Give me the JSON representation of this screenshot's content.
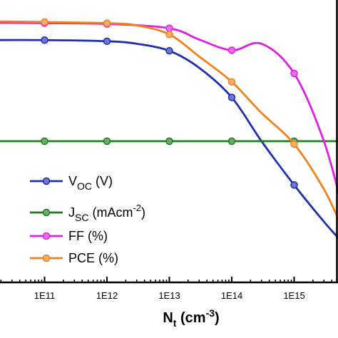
{
  "chart_data": {
    "type": "line",
    "xscale": "log",
    "x": [
      10000000000.0,
      100000000000.0,
      1000000000000.0,
      10000000000000.0,
      100000000000000.0,
      1000000000000000.0
    ],
    "xlim": [
      10000000000.0,
      6000000000000000.0
    ],
    "ylim": [
      0,
      1
    ],
    "xticks": [
      "1E11",
      "1E12",
      "1E13",
      "1E14",
      "1E15"
    ],
    "xlabel": {
      "main": "N",
      "sub": "t",
      "unit_open": " (cm",
      "sup": "-3",
      "unit_close": ")"
    },
    "grid": false,
    "legend_position": "lower-left",
    "series": [
      {
        "name": "VOC (V)",
        "color": "#1f2fb0",
        "markers": [
          [
            10000000000.0,
            0.858
          ],
          [
            100000000000.0,
            0.858
          ],
          [
            1000000000000.0,
            0.854
          ],
          [
            10000000000000.0,
            0.82
          ],
          [
            100000000000000.0,
            0.655
          ],
          [
            1000000000000000.0,
            0.345
          ]
        ],
        "curve": [
          [
            10000000000.0,
            0.858
          ],
          [
            100000000000.0,
            0.858
          ],
          [
            1000000000000.0,
            0.854
          ],
          [
            3000000000000.0,
            0.845
          ],
          [
            10000000000000.0,
            0.82
          ],
          [
            30000000000000.0,
            0.76
          ],
          [
            100000000000000.0,
            0.655
          ],
          [
            300000000000000.0,
            0.5
          ],
          [
            1000000000000000.0,
            0.345
          ],
          [
            3000000000000000.0,
            0.215
          ],
          [
            6000000000000000.0,
            0.14
          ]
        ]
      },
      {
        "name": "JSC (mAcm-2)",
        "color": "#1e7d1e",
        "markers": [
          [
            10000000000.0,
            0.5
          ],
          [
            100000000000.0,
            0.5
          ],
          [
            1000000000000.0,
            0.5
          ],
          [
            10000000000000.0,
            0.5
          ],
          [
            100000000000000.0,
            0.5
          ],
          [
            1000000000000000.0,
            0.5
          ]
        ],
        "curve": [
          [
            10000000000.0,
            0.5
          ],
          [
            6000000000000000.0,
            0.5
          ]
        ]
      },
      {
        "name": "FF (%)",
        "color": "#e020e0",
        "markers": [
          [
            10000000000.0,
            0.92
          ],
          [
            100000000000.0,
            0.918
          ],
          [
            1000000000000.0,
            0.915
          ],
          [
            10000000000000.0,
            0.9
          ],
          [
            100000000000000.0,
            0.822
          ],
          [
            1000000000000000.0,
            0.74
          ]
        ],
        "curve": [
          [
            10000000000.0,
            0.92
          ],
          [
            100000000000.0,
            0.918
          ],
          [
            1000000000000.0,
            0.915
          ],
          [
            10000000000000.0,
            0.9
          ],
          [
            30000000000000.0,
            0.86
          ],
          [
            100000000000000.0,
            0.822
          ],
          [
            300000000000000.0,
            0.845
          ],
          [
            1000000000000000.0,
            0.74
          ],
          [
            3000000000000000.0,
            0.5
          ],
          [
            6000000000000000.0,
            0.26
          ]
        ]
      },
      {
        "name": "PCE (%)",
        "color": "#f0821e",
        "markers": [
          [
            10000000000.0,
            0.925
          ],
          [
            100000000000.0,
            0.922
          ],
          [
            1000000000000.0,
            0.918
          ],
          [
            10000000000000.0,
            0.878
          ],
          [
            100000000000000.0,
            0.71
          ],
          [
            1000000000000000.0,
            0.49
          ]
        ],
        "curve": [
          [
            10000000000.0,
            0.925
          ],
          [
            100000000000.0,
            0.922
          ],
          [
            1000000000000.0,
            0.918
          ],
          [
            3000000000000.0,
            0.91
          ],
          [
            10000000000000.0,
            0.878
          ],
          [
            30000000000000.0,
            0.8
          ],
          [
            100000000000000.0,
            0.71
          ],
          [
            300000000000000.0,
            0.6
          ],
          [
            1000000000000000.0,
            0.49
          ],
          [
            3000000000000000.0,
            0.33
          ],
          [
            6000000000000000.0,
            0.19
          ]
        ]
      }
    ],
    "legend": [
      {
        "main": "V",
        "sub": "OC",
        "rest": " (V)",
        "sup": "",
        "tail": ""
      },
      {
        "main": "J",
        "sub": "SC",
        "rest": " (mAcm",
        "sup": "-2",
        "tail": ")"
      },
      {
        "main": "FF (%)",
        "sub": "",
        "rest": "",
        "sup": "",
        "tail": ""
      },
      {
        "main": "PCE (%)",
        "sub": "",
        "rest": "",
        "sup": "",
        "tail": ""
      }
    ]
  }
}
